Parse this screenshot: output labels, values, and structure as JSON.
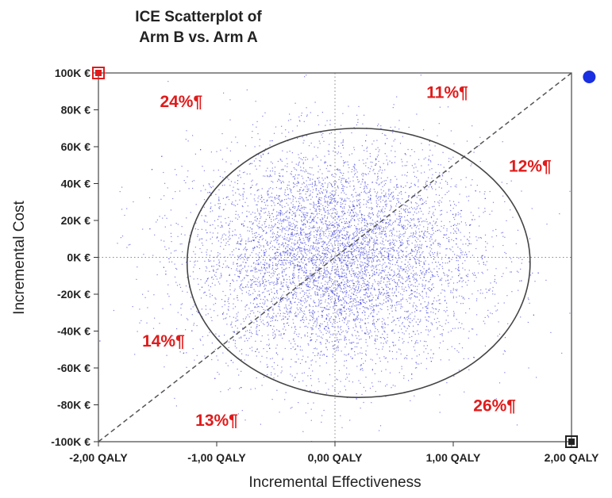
{
  "chart_data": {
    "type": "scatter",
    "title_lines": [
      "ICE Scatterplot of",
      "Arm B vs. Arm A"
    ],
    "xlabel": "Incremental Effectiveness",
    "ylabel": "Incremental Cost",
    "xlim": [
      -2,
      2
    ],
    "ylim": [
      -100000,
      100000
    ],
    "x_ticks": [
      {
        "value": -2,
        "label": "-2,00 QALY"
      },
      {
        "value": -1,
        "label": "-1,00 QALY"
      },
      {
        "value": 0,
        "label": "0,00 QALY"
      },
      {
        "value": 1,
        "label": "1,00 QALY"
      },
      {
        "value": 2,
        "label": "2,00 QALY"
      }
    ],
    "y_ticks": [
      {
        "value": 100000,
        "label": "100K €"
      },
      {
        "value": 80000,
        "label": "80K €"
      },
      {
        "value": 60000,
        "label": "60K €"
      },
      {
        "value": 40000,
        "label": "40K €"
      },
      {
        "value": 20000,
        "label": "20K €"
      },
      {
        "value": 0,
        "label": "0K €"
      },
      {
        "value": -20000,
        "label": "-20K €"
      },
      {
        "value": -40000,
        "label": "-40K €"
      },
      {
        "value": -60000,
        "label": "-60K €"
      },
      {
        "value": -80000,
        "label": "-80K €"
      },
      {
        "value": -100000,
        "label": "-100K €"
      }
    ],
    "point_cloud": {
      "count": 7000,
      "center": [
        0,
        0
      ],
      "spread_sd": [
        0.6,
        30000
      ],
      "color": "#3d3ddb"
    },
    "confidence_ellipse": {
      "center": [
        0.2,
        -3000
      ],
      "radii": [
        1.45,
        73000
      ],
      "color": "#444444"
    },
    "reference_lines": [
      {
        "kind": "diagonal",
        "from": [
          -2,
          -100000
        ],
        "to": [
          2,
          100000
        ],
        "style": "dashed",
        "color": "#555555"
      },
      {
        "kind": "vertical",
        "x": 0,
        "style": "dotted",
        "color": "#888888"
      },
      {
        "kind": "horizontal",
        "y": 0,
        "style": "dotted",
        "color": "#888888"
      }
    ],
    "annotations": [
      {
        "text": "24%¶",
        "x": -1.3,
        "y": 85000
      },
      {
        "text": "11%¶",
        "x": 0.95,
        "y": 90000
      },
      {
        "text": "12%¶",
        "x": 1.65,
        "y": 50000
      },
      {
        "text": "14%¶",
        "x": -1.45,
        "y": -45000
      },
      {
        "text": "13%¶",
        "x": -1.0,
        "y": -88000
      },
      {
        "text": "26%¶",
        "x": 1.35,
        "y": -80000
      }
    ],
    "corner_markers": [
      {
        "shape": "square-outline",
        "x": -2,
        "y": 100000,
        "color": "#e01b1b"
      },
      {
        "shape": "square-outline",
        "x": 2,
        "y": -100000,
        "color": "#222222"
      },
      {
        "shape": "circle",
        "x": 2.15,
        "y": 100000,
        "color": "#1a2fe0"
      }
    ],
    "grid": false,
    "legend": "none"
  }
}
